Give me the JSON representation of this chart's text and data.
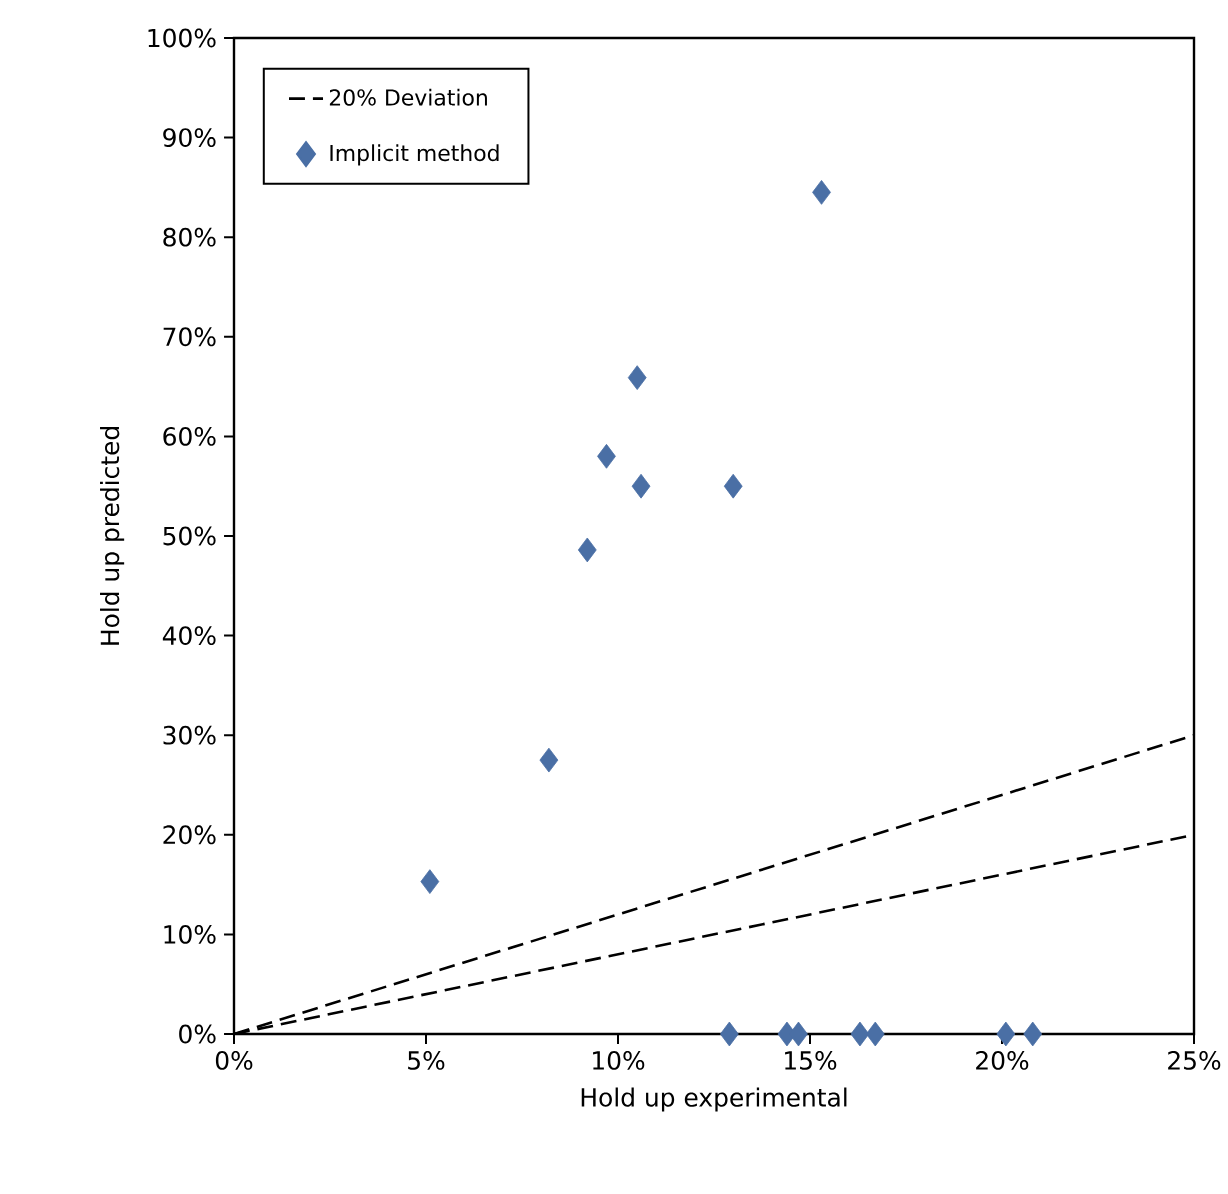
{
  "chart_data": {
    "type": "scatter",
    "xlabel": "Hold up experimental",
    "ylabel": "Hold up predicted",
    "xlim": [
      0,
      25
    ],
    "ylim": [
      0,
      100
    ],
    "xticks": [
      {
        "value": 0,
        "label": "0%"
      },
      {
        "value": 5,
        "label": "5%"
      },
      {
        "value": 10,
        "label": "10%"
      },
      {
        "value": 15,
        "label": "15%"
      },
      {
        "value": 20,
        "label": "20%"
      },
      {
        "value": 25,
        "label": "25%"
      }
    ],
    "yticks": [
      {
        "value": 0,
        "label": "0%"
      },
      {
        "value": 10,
        "label": "10%"
      },
      {
        "value": 20,
        "label": "20%"
      },
      {
        "value": 30,
        "label": "30%"
      },
      {
        "value": 40,
        "label": "40%"
      },
      {
        "value": 50,
        "label": "50%"
      },
      {
        "value": 60,
        "label": "60%"
      },
      {
        "value": 70,
        "label": "70%"
      },
      {
        "value": 80,
        "label": "80%"
      },
      {
        "value": 90,
        "label": "90%"
      },
      {
        "value": 100,
        "label": "100%"
      }
    ],
    "legend": "top left",
    "grid": false,
    "series": [
      {
        "name": "20% Deviation",
        "type": "line",
        "line_style": "dashed",
        "marker": "none",
        "color": "#000000",
        "x": [
          0,
          25
        ],
        "values": [
          0,
          30
        ]
      },
      {
        "type": "line",
        "line_style": "dashed",
        "marker": "none",
        "color": "#000000",
        "x": [
          0,
          25
        ],
        "values": [
          0,
          20
        ]
      },
      {
        "name": "Implicit method",
        "marker": "diamond",
        "color": "#4a6fa5",
        "x": [
          5.1,
          8.2,
          9.2,
          9.7,
          10.5,
          10.6,
          13.0,
          15.3,
          12.9,
          14.4,
          14.7,
          16.3,
          16.7,
          20.1,
          20.8
        ],
        "values": [
          15.3,
          27.5,
          48.6,
          58,
          65.9,
          55,
          55,
          84.5,
          0,
          0,
          0,
          0,
          0,
          0,
          0
        ]
      }
    ]
  }
}
